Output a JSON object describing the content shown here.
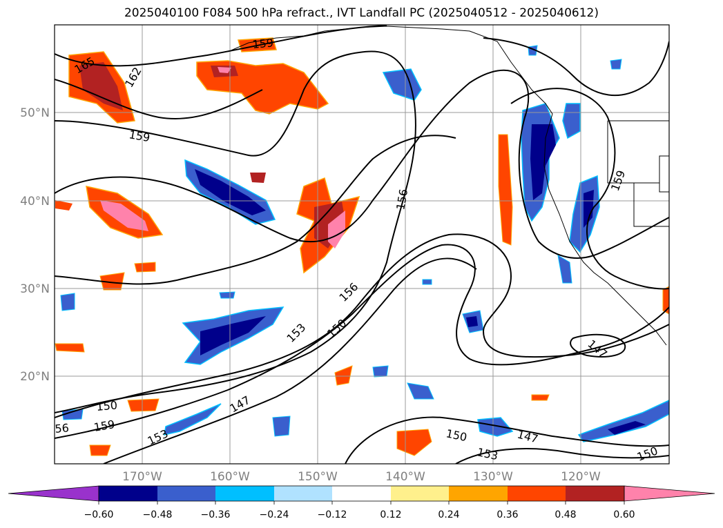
{
  "title": "2025040100 F084 500 hPa refract., IVT Landfall PC (2025040512 - 2025040612)",
  "map": {
    "lat_labels": [
      "50°N",
      "40°N",
      "30°N",
      "20°N"
    ],
    "lon_labels": [
      "170°W",
      "160°W",
      "150°W",
      "140°W",
      "130°W",
      "120°W"
    ],
    "contour_labels": [
      "165",
      "162",
      "159",
      "159",
      "159",
      "156",
      "156",
      "153",
      "150",
      "150",
      "159",
      "56",
      "153",
      "147",
      "150",
      "153",
      "147",
      "147",
      "150"
    ]
  },
  "colorbar": {
    "ticks": [
      "−0.60",
      "−0.48",
      "−0.36",
      "−0.24",
      "−0.12",
      "0.12",
      "0.24",
      "0.36",
      "0.48",
      "0.60"
    ],
    "colors": [
      "#9932cc",
      "#00008b",
      "#3a5fcd",
      "#00bfff",
      "#b0e2ff",
      "#ffffff",
      "#fff08c",
      "#ffa500",
      "#ff4500",
      "#b22222",
      "#ff82ab"
    ]
  }
}
